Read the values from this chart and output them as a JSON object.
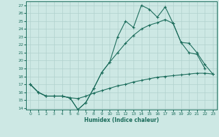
{
  "title": "",
  "xlabel": "Humidex (Indice chaleur)",
  "xlim": [
    -0.5,
    23.5
  ],
  "ylim": [
    13.8,
    27.5
  ],
  "xticks": [
    0,
    1,
    2,
    3,
    4,
    5,
    6,
    7,
    8,
    9,
    10,
    11,
    12,
    13,
    14,
    15,
    16,
    17,
    18,
    19,
    20,
    21,
    22,
    23
  ],
  "yticks": [
    14,
    15,
    16,
    17,
    18,
    19,
    20,
    21,
    22,
    23,
    24,
    25,
    26,
    27
  ],
  "bg_color": "#cde8e4",
  "line_color": "#1a6b5a",
  "grid_color": "#b0d0cc",
  "line1_x": [
    0,
    1,
    2,
    3,
    4,
    5,
    6,
    7,
    8,
    9,
    10,
    11,
    12,
    13,
    14,
    15,
    16,
    17,
    18,
    19,
    20,
    21,
    22
  ],
  "line1_y": [
    17.0,
    16.0,
    15.5,
    15.5,
    15.5,
    15.3,
    13.8,
    14.7,
    16.5,
    18.5,
    19.8,
    23.0,
    25.0,
    24.2,
    27.0,
    26.5,
    25.5,
    26.8,
    24.7,
    22.3,
    21.0,
    20.8,
    19.0
  ],
  "line2_x": [
    0,
    1,
    2,
    3,
    4,
    5,
    6,
    7,
    8,
    9,
    10,
    11,
    12,
    13,
    14,
    15,
    16,
    17,
    18,
    19,
    20,
    21,
    22,
    23
  ],
  "line2_y": [
    17.0,
    16.0,
    15.5,
    15.5,
    15.5,
    15.3,
    13.8,
    14.7,
    16.5,
    18.5,
    19.8,
    21.0,
    22.2,
    23.2,
    24.0,
    24.5,
    24.8,
    25.2,
    24.7,
    22.3,
    22.2,
    21.0,
    19.5,
    18.3
  ],
  "line3_x": [
    0,
    1,
    2,
    3,
    4,
    5,
    6,
    7,
    8,
    9,
    10,
    11,
    12,
    13,
    14,
    15,
    16,
    17,
    18,
    19,
    20,
    21,
    22,
    23
  ],
  "line3_y": [
    17.0,
    16.0,
    15.5,
    15.5,
    15.5,
    15.3,
    15.2,
    15.5,
    15.9,
    16.2,
    16.5,
    16.8,
    17.0,
    17.3,
    17.5,
    17.7,
    17.9,
    18.0,
    18.1,
    18.2,
    18.3,
    18.4,
    18.4,
    18.3
  ]
}
